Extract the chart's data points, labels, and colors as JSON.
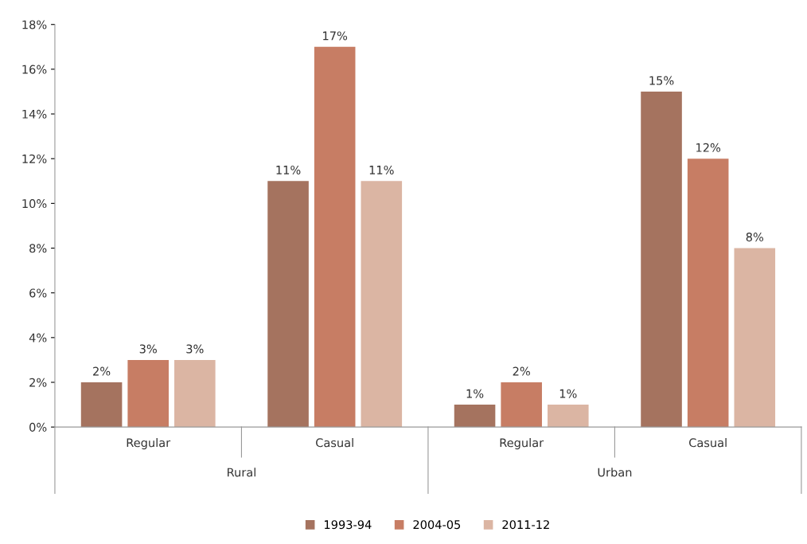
{
  "chart_data": {
    "type": "bar",
    "categories": [
      "Regular",
      "Casual",
      "Regular",
      "Casual"
    ],
    "annotations": [
      "Rural",
      "Urban"
    ],
    "series": [
      {
        "name": "1993-94",
        "color": "#a5735f",
        "values": [
          2,
          11,
          1,
          15
        ],
        "value_labels": [
          "2%",
          "11%",
          "1%",
          "15%"
        ]
      },
      {
        "name": "2004-05",
        "color": "#c77d64",
        "values": [
          3,
          17,
          2,
          12
        ],
        "value_labels": [
          "3%",
          "17%",
          "2%",
          "12%"
        ]
      },
      {
        "name": "2011-12",
        "color": "#dbb5a3",
        "values": [
          3,
          11,
          1,
          8
        ],
        "value_labels": [
          "3%",
          "11%",
          "1%",
          "8%"
        ]
      }
    ],
    "ylim": [
      0,
      18
    ],
    "yticks": [
      {
        "value": 0,
        "label": "0%"
      },
      {
        "value": 2,
        "label": "2%"
      },
      {
        "value": 4,
        "label": "4%"
      },
      {
        "value": 6,
        "label": "6%"
      },
      {
        "value": 8,
        "label": "8%"
      },
      {
        "value": 10,
        "label": "10%"
      },
      {
        "value": 12,
        "label": "12%"
      },
      {
        "value": 14,
        "label": "14%"
      },
      {
        "value": 16,
        "label": "16%"
      },
      {
        "value": 18,
        "label": "18%"
      }
    ],
    "grid": false,
    "legend": "bottom"
  }
}
